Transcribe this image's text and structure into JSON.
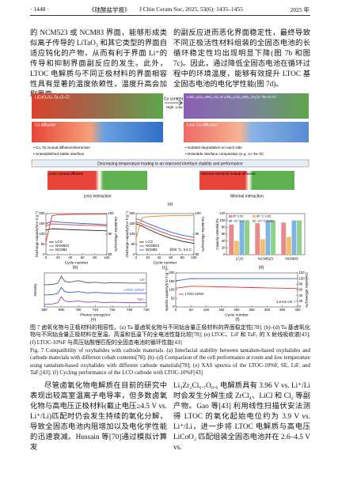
{
  "header": {
    "page": "· 1448 ·",
    "journal_cn": "《硅酸盐学报》",
    "journal_en": "J Chin Ceram Soc, 2025, 53(6): 1435–1455",
    "year": "2025 年"
  },
  "top_text": {
    "left": "的 NCM523 或 NCM83 界面，能够形成类似离子传导的 LiTaO₃ 和其它类型的界面自适应钝化的产物，从而有利于界面 Li⁺的传导和抑制界面副反应的发生。此外，LTOC 电解质与不同正极材料的界面相容性具有显著的温度依赖性，温度升高会加剧界面",
    "right": "的副反应进而恶化界面稳定性，最终导致不同正极活性材料组装的全固态电池的长循环稳定性均出现明显下降(图 7b 和图 7c)。因此，通过降低全固态电池在循环过程中的环境温度，能够有效提升 LTOC 基全固态电池的电化学性能(图 7d)。"
  },
  "figure": {
    "a": {
      "left_title": "LiCoO₂/Li–Ta–O–Cl",
      "right_title": "LiNi₀.₅Co₀.₂Mn₀.₃O₂ or LiNi₀.₈Co₀.₁Mn₀.₁O₂/Li–Ta–O–Cl",
      "co_content": "Co content",
      "high": "High",
      "low": "Low",
      "left_diffusion": "Co diffusion",
      "right_diffusion": "Less Co diffusion",
      "left_bullets": [
        "• Co, Ta mutual diffusion/interaction",
        "• Unestablished stable interface"
      ],
      "right_bullets": [
        "• Isolated degradation on each side",
        "• Desirable interface composition (e.g., Li–Ta–O)"
      ],
      "banner": "Decreasing temperature leading to an improved interface stability and performance",
      "left_mutual": "Less mutual diffusion",
      "right_mutual": "Minimal chemical mutual diffusion",
      "left_result": "Less interaction",
      "right_result": "Minimal interaction",
      "label": "(a)"
    },
    "b": {
      "type": "line",
      "label": "(b)",
      "x_label": "Cycle number",
      "y_label": "Discharge capacity/(mA·h g⁻¹)",
      "y2_label": "Coulombic efficiency/%",
      "x": [
        0,
        10,
        20,
        40,
        60,
        80,
        100
      ],
      "xlim": [
        0,
        100
      ],
      "xticks": [
        0,
        20,
        40,
        60,
        80,
        100
      ],
      "ylim": [
        0,
        200
      ],
      "yticks": [
        0,
        50,
        100,
        150,
        200
      ],
      "y2lim": [
        80,
        100
      ],
      "y2ticks": [
        80,
        90,
        100
      ],
      "series": [
        {
          "name": "LCO",
          "color": "#222222",
          "values": [
            120,
            126,
            125,
            122,
            120,
            118,
            116
          ]
        },
        {
          "name": "NCM523",
          "color": "#e2362f",
          "values": [
            140,
            150,
            148,
            146,
            144,
            142,
            140
          ]
        },
        {
          "name": "NCM83",
          "color": "#2f5fd0",
          "values": [
            152,
            162,
            159,
            155,
            152,
            149,
            146
          ]
        },
        {
          "color": "#e2362f",
          "axis": "y2",
          "values": [
            86,
            99,
            99.4,
            99.6,
            99.7,
            99.7,
            99.8
          ]
        }
      ]
    },
    "c": {
      "type": "line",
      "label": "(c)",
      "x_label": "Cycle number",
      "y_label": "Discharge capacity/(mA·h g⁻¹)",
      "y2_label": "Coulombic efficiency/%",
      "note": "@60 °C, 0.5 C",
      "x": [
        0,
        10,
        20,
        40,
        60,
        80,
        100
      ],
      "xlim": [
        0,
        100
      ],
      "xticks": [
        0,
        20,
        40,
        60,
        80,
        100
      ],
      "ylim": [
        0,
        200
      ],
      "yticks": [
        0,
        50,
        100,
        150,
        200
      ],
      "y2lim": [
        80,
        100
      ],
      "y2ticks": [
        80,
        90,
        100
      ],
      "series": [
        {
          "name": "LCO",
          "color": "#222222",
          "values": [
            150,
            140,
            125,
            100,
            80,
            65,
            55
          ]
        },
        {
          "name": "NCM523",
          "color": "#e2362f",
          "values": [
            160,
            150,
            138,
            115,
            95,
            80,
            70
          ]
        },
        {
          "name": "NCM83",
          "color": "#2f5fd0",
          "values": [
            175,
            165,
            152,
            130,
            110,
            95,
            85
          ]
        },
        {
          "color": "#f08a2a",
          "axis": "y2",
          "values": [
            88,
            98,
            98.5,
            98.8,
            99,
            99,
            99.1
          ]
        }
      ]
    },
    "d": {
      "type": "bar",
      "label": "(d)",
      "y_label": "Capacity retention/%",
      "categories": [
        "LCO",
        "NCM523",
        "NCM83"
      ],
      "ylim": [
        0,
        120
      ],
      "yticks": [
        0,
        20,
        40,
        60,
        80,
        100,
        120
      ],
      "series": [
        {
          "name": "RT 0.5C",
          "color": "#e98a8a",
          "values": [
            88,
            92,
            94
          ]
        },
        {
          "name": "60 °C 0.5C",
          "color": "#f4c06a",
          "values": [
            40,
            45,
            52
          ]
        },
        {
          "name": "−20 °C 0.1C",
          "color": "#7fb4e8",
          "values": [
            99,
            100,
            100
          ]
        },
        {
          "name": "−20 °C 0.05C",
          "color": "#8fd08a",
          "values": [
            98,
            99,
            100
          ]
        }
      ]
    },
    "e": {
      "type": "line",
      "label": "(e)",
      "x_label": "Photon energy/eV",
      "y_label": "Intensity",
      "curve_labels": true,
      "x": [
        680,
        685,
        688,
        690,
        692,
        695,
        700,
        705,
        710,
        715,
        720,
        730,
        740
      ],
      "xlim": [
        680,
        740
      ],
      "xticks": [
        680,
        690,
        700,
        710,
        720,
        730,
        740
      ],
      "ylim": [
        0,
        4
      ],
      "series": [
        {
          "name": "LiF",
          "color": "#555555",
          "values": [
            2.6,
            2.65,
            2.8,
            3.6,
            3.0,
            2.9,
            3.1,
            2.85,
            2.9,
            2.8,
            2.85,
            2.8,
            2.8
          ]
        },
        {
          "name": "LTOC-10%F",
          "color": "#2f5fd0",
          "values": [
            1.4,
            1.45,
            1.6,
            2.3,
            1.8,
            1.7,
            1.8,
            1.65,
            1.7,
            1.65,
            1.6,
            1.6,
            1.6
          ]
        },
        {
          "name": "TaF₅",
          "color": "#8b4fb0",
          "values": [
            0.3,
            0.35,
            0.5,
            1.2,
            0.7,
            0.6,
            0.7,
            0.55,
            0.6,
            0.5,
            0.55,
            0.5,
            0.5
          ]
        }
      ]
    },
    "f": {
      "type": "line",
      "label": "(f)",
      "x_label": "Cycle number",
      "y_label": "Specific capacity/(mA·h g⁻¹)",
      "y2_label": "Coulombic efficiency/%",
      "note": "1.0 mA cm⁻²",
      "x": [
        0,
        50,
        100,
        150,
        200,
        250,
        300,
        350,
        400
      ],
      "xlim": [
        0,
        400
      ],
      "xticks": [
        0,
        50,
        100,
        150,
        200,
        250,
        300,
        350,
        400
      ],
      "ylim": [
        0,
        200
      ],
      "yticks": [
        0,
        50,
        100,
        150,
        200
      ],
      "y2lim": [
        0,
        120
      ],
      "y2ticks": [
        0,
        20,
        40,
        60,
        80,
        100,
        120
      ],
      "series": [
        {
          "name": "LTOC-10%F",
          "color": "#e2362f",
          "values": [
            110,
            122,
            120,
            118,
            116,
            114,
            112,
            110,
            108
          ]
        },
        {
          "color": "#2f5fd0",
          "axis": "y2",
          "values": [
            92,
            99.8,
            99.9,
            99.9,
            99.9,
            99.9,
            99.9,
            99.9,
            99.9
          ]
        }
      ]
    }
  },
  "caption": {
    "cn": "图 7  卤氧化物与正极材料的相容性。(a) Ta 基卤氧化物与不同钴含量正极材料的界面稳定性[78]; (b)–(d) Ta 基卤氧化物与不同钴含量正极材料在室温、高温和低温下的全电池性能比较[78]; (e) LTOC、LiF 和 TaF₅ 的 X 射线吸收谱[43]; (f) LTOC-10%F 与高压钴酸锂匹配的全固态电池的循环性能[43]",
    "en": "Fig. 7  Compatibility of oxyhalides with cathode materials. (a) Interfacial stability between tantalum-based oxyhalides and cathode materials with different cobalt contents[78]; (b)–(d) Comparison of the cell performance at room and low temperature using tantalum-based oxyhalides with different cathode materials[78]; (e) XAS spectra of the LTOC-10%F, SE, LiF, and TaF₅[43]; (f) Cycling performance of the LCO cathode with LTOC-10%F[43]"
  },
  "bottom_text": {
    "left": "尽管卤氧化物电解质在目前的研究中表现出较高室温离子电导率，但多数卤氧化物与高电压正极材料(截止电压≥4.5 V vs. Li⁺/Li)匹配时仍会发生持续的氧化分解，导致全固态电池内阻增加以及电化学性能的迅速衰减。Hussain 等[70]通过模拟计算发",
    "right": "Li₃Zr₂Cl₅.₇O₀.₅ 电解质具有 3.96 V vs. Li⁺/Li 时会发生分解生成 ZrCl₄、LiCl 和 Cl₂ 等副产物。Gao 等[43] 利用线性扫描伏安法测得 LTOC 的氧化起始电位约为 3.9 V vs. Li⁺/Li，进一步将 LTOC 电解质与高电压 LiCoO₂ 匹配组装全固态电池并在 2.6–4.5 V vs."
  }
}
